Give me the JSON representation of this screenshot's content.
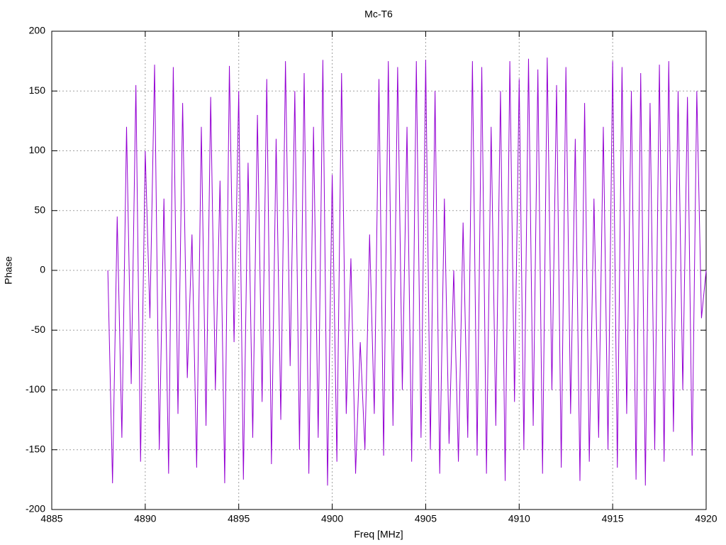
{
  "chart_data": {
    "type": "line",
    "title": "Mc-T6",
    "xlabel": "Freq [MHz]",
    "ylabel": "Phase",
    "color": "#9400d3",
    "grid": true,
    "xlim": [
      4885,
      4920
    ],
    "xticks": [
      4885,
      4890,
      4895,
      4900,
      4905,
      4910,
      4915,
      4920
    ],
    "ylim": [
      -200,
      200
    ],
    "yticks": [
      -200,
      -150,
      -100,
      -50,
      0,
      50,
      100,
      150,
      200
    ],
    "x": [
      4888,
      4888.25,
      4888.5,
      4888.75,
      4889,
      4889.25,
      4889.5,
      4889.75,
      4890,
      4890.25,
      4890.5,
      4890.75,
      4891,
      4891.25,
      4891.5,
      4891.75,
      4892,
      4892.25,
      4892.5,
      4892.75,
      4893,
      4893.25,
      4893.5,
      4893.75,
      4894,
      4894.25,
      4894.5,
      4894.75,
      4895,
      4895.25,
      4895.5,
      4895.75,
      4896,
      4896.25,
      4896.5,
      4896.75,
      4897,
      4897.25,
      4897.5,
      4897.75,
      4898,
      4898.25,
      4898.5,
      4898.75,
      4899,
      4899.25,
      4899.5,
      4899.75,
      4900,
      4900.25,
      4900.5,
      4900.75,
      4901,
      4901.25,
      4901.5,
      4901.75,
      4902,
      4902.25,
      4902.5,
      4902.75,
      4903,
      4903.25,
      4903.5,
      4903.75,
      4904,
      4904.25,
      4904.5,
      4904.75,
      4905,
      4905.25,
      4905.5,
      4905.75,
      4906,
      4906.25,
      4906.5,
      4906.75,
      4907,
      4907.25,
      4907.5,
      4907.75,
      4908,
      4908.25,
      4908.5,
      4908.75,
      4909,
      4909.25,
      4909.5,
      4909.75,
      4910,
      4910.25,
      4910.5,
      4910.75,
      4911,
      4911.25,
      4911.5,
      4911.75,
      4912,
      4912.25,
      4912.5,
      4912.75,
      4913,
      4913.25,
      4913.5,
      4913.75,
      4914,
      4914.25,
      4914.5,
      4914.75,
      4915,
      4915.25,
      4915.5,
      4915.75,
      4916,
      4916.25,
      4916.5,
      4916.75,
      4917,
      4917.25,
      4917.5,
      4917.75,
      4918,
      4918.25,
      4918.5,
      4918.75,
      4919,
      4919.25,
      4919.5,
      4919.75,
      4920
    ],
    "values": [
      0,
      -178,
      45,
      -140,
      120,
      -95,
      155,
      -160,
      100,
      -40,
      172,
      -150,
      60,
      -170,
      170,
      -120,
      140,
      -90,
      30,
      -165,
      120,
      -130,
      145,
      -100,
      75,
      -178,
      171,
      -60,
      150,
      -175,
      90,
      -140,
      130,
      -110,
      160,
      -162,
      110,
      -125,
      175,
      -80,
      150,
      -150,
      165,
      -170,
      120,
      -140,
      176,
      -180,
      80,
      -160,
      165,
      -120,
      10,
      -170,
      -60,
      -150,
      30,
      -120,
      160,
      -155,
      175,
      -130,
      170,
      -100,
      120,
      -160,
      175,
      -140,
      176,
      -150,
      150,
      -170,
      60,
      -145,
      0,
      -160,
      40,
      -140,
      175,
      -155,
      170,
      -170,
      120,
      -130,
      150,
      -176,
      175,
      -110,
      160,
      -150,
      177,
      -130,
      168,
      -170,
      178,
      -100,
      155,
      -165,
      170,
      -120,
      110,
      -176,
      140,
      -160,
      60,
      -140,
      120,
      -150,
      175,
      -165,
      170,
      -120,
      150,
      -175,
      165,
      -180,
      140,
      -150,
      172,
      -160,
      175,
      -135,
      150,
      -100,
      145,
      -155,
      150,
      -40,
      0
    ]
  }
}
